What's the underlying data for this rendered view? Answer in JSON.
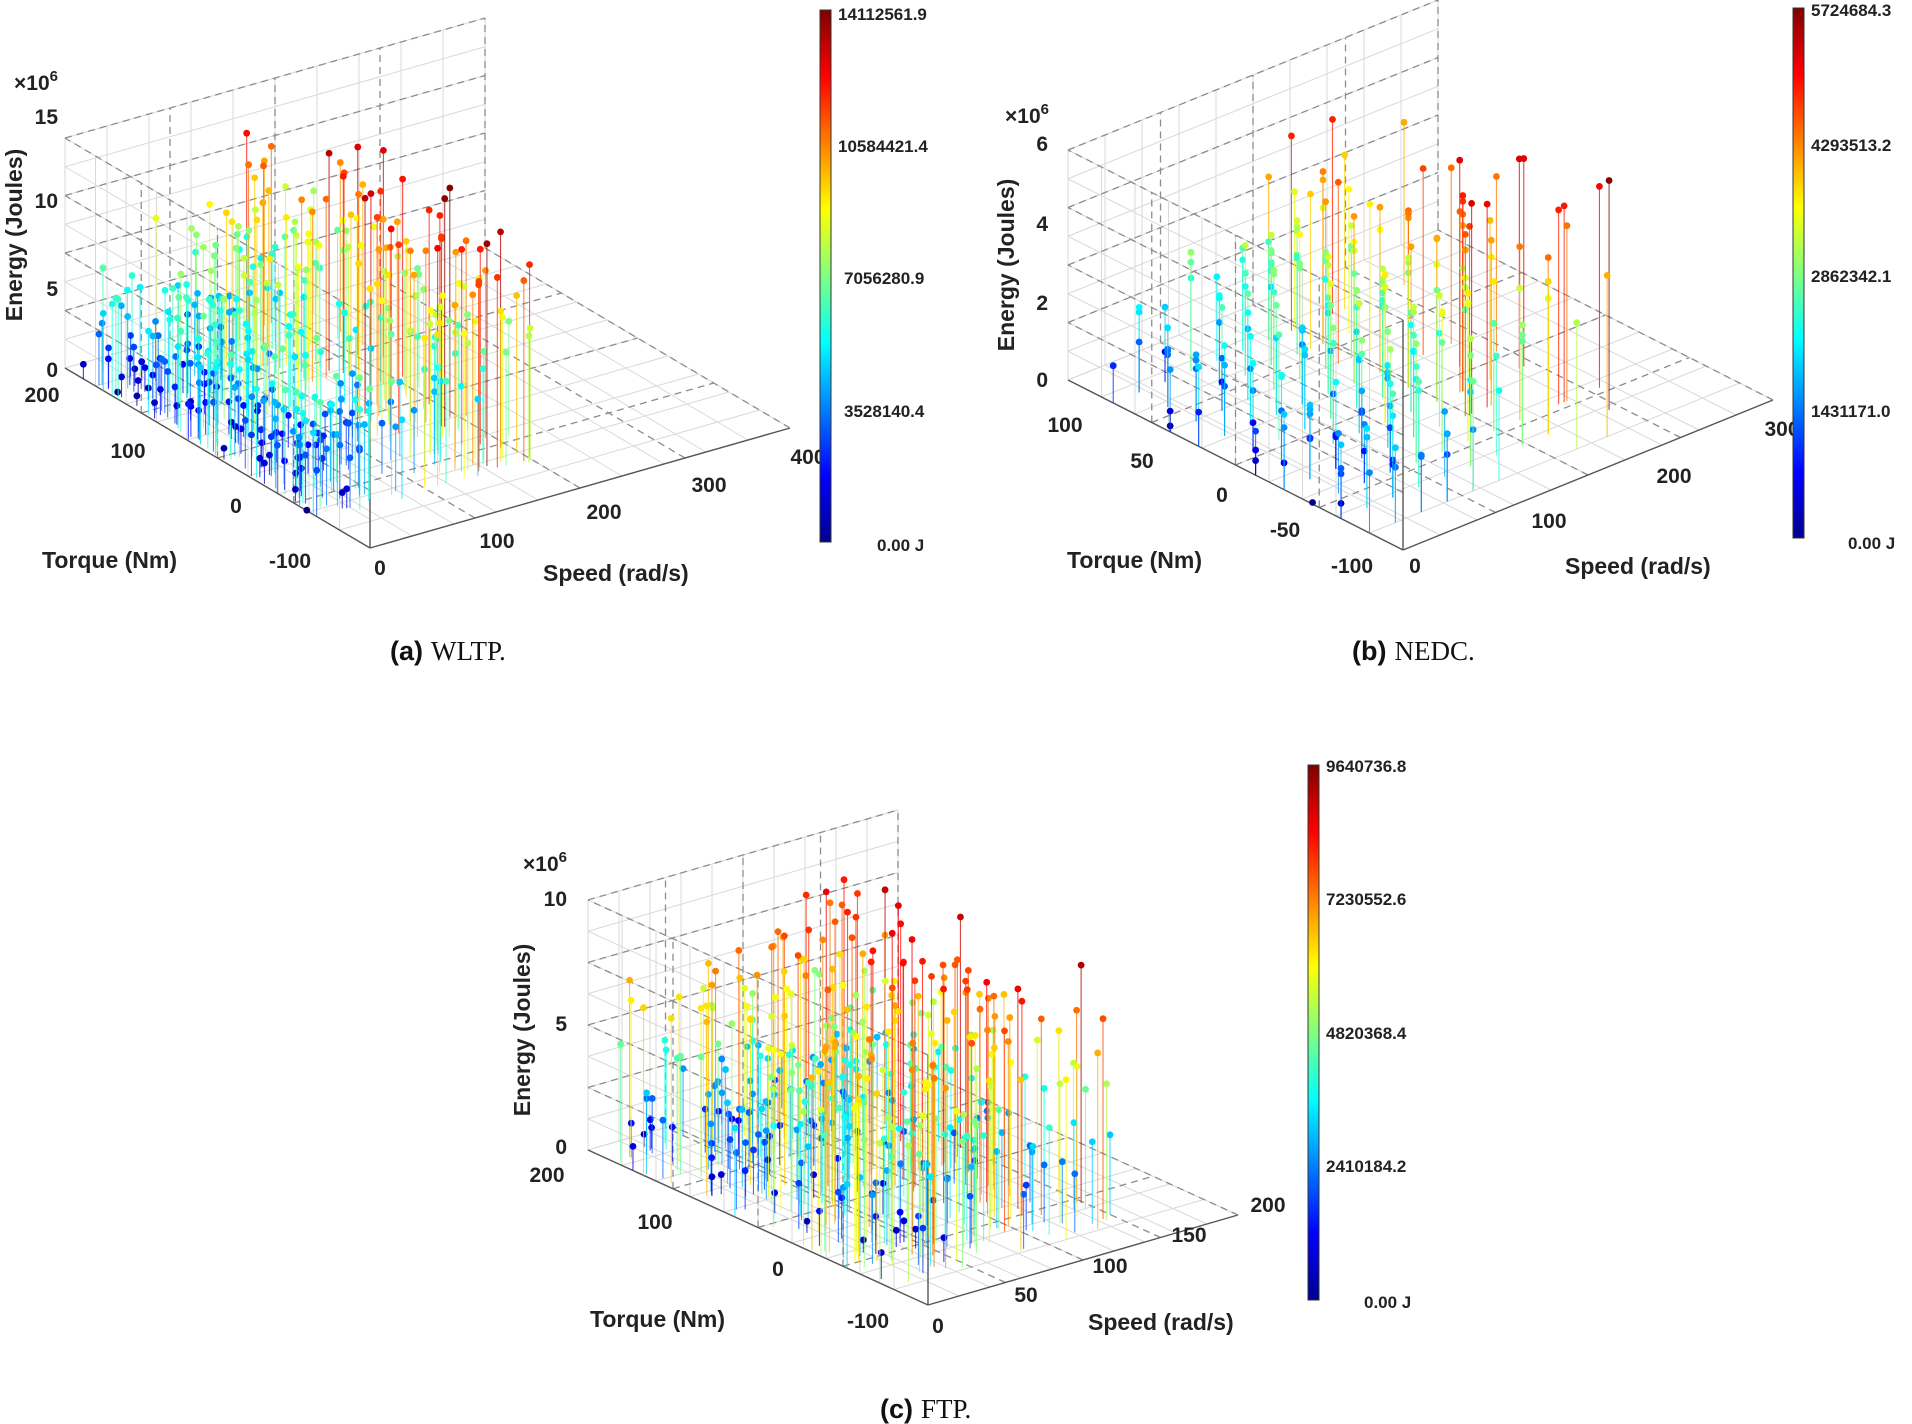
{
  "chart_data": [
    {
      "type": "scatter",
      "subtype": "3d-stem",
      "caption_label": "(a)",
      "caption_text": "WLTP.",
      "zlabel": "Energy (Joules)",
      "xlabel": "Speed (rad/s)",
      "ylabel": "Torque (Nm)",
      "zscale": "×10",
      "zscale_exp": "6",
      "x_ticks": [
        "0",
        "100",
        "200",
        "300",
        "400"
      ],
      "y_ticks": [
        "-100",
        "0",
        "100",
        "200"
      ],
      "z_ticks": [
        "0",
        "5",
        "10",
        "15"
      ],
      "xlim": [
        0,
        400
      ],
      "ylim": [
        -100,
        200
      ],
      "zlim": [
        0,
        15
      ],
      "colorbar_ticks": [
        "14112561.9",
        "10584421.4",
        "7056280.9",
        "3528140.4",
        "0.00 J"
      ],
      "colorbar_max": 14112561.9,
      "seed": 11
    },
    {
      "type": "scatter",
      "subtype": "3d-stem",
      "caption_label": "(b)",
      "caption_text": "NEDC.",
      "zlabel": "Energy (Joules)",
      "xlabel": "Speed (rad/s)",
      "ylabel": "Torque (Nm)",
      "zscale": "×10",
      "zscale_exp": "6",
      "x_ticks": [
        "0",
        "100",
        "200",
        "300"
      ],
      "y_ticks": [
        "-100",
        "-50",
        "0",
        "50",
        "100"
      ],
      "z_ticks": [
        "0",
        "2",
        "4",
        "6"
      ],
      "xlim": [
        0,
        300
      ],
      "ylim": [
        -100,
        100
      ],
      "zlim": [
        0,
        6
      ],
      "colorbar_ticks": [
        "5724684.3",
        "4293513.2",
        "2862342.1",
        "1431171.0",
        "0.00 J"
      ],
      "colorbar_max": 5724684.3,
      "seed": 23
    },
    {
      "type": "scatter",
      "subtype": "3d-stem",
      "caption_label": "(c)",
      "caption_text": "FTP.",
      "zlabel": "Energy (Joules)",
      "xlabel": "Speed (rad/s)",
      "ylabel": "Torque (Nm)",
      "zscale": "×10",
      "zscale_exp": "6",
      "x_ticks": [
        "0",
        "50",
        "100",
        "150",
        "200"
      ],
      "y_ticks": [
        "-100",
        "0",
        "100",
        "200"
      ],
      "z_ticks": [
        "0",
        "5",
        "10"
      ],
      "xlim": [
        0,
        200
      ],
      "ylim": [
        -100,
        200
      ],
      "zlim": [
        0,
        10
      ],
      "colorbar_ticks": [
        "9640736.8",
        "7230552.6",
        "4820368.4",
        "2410184.2",
        "0.00 J"
      ],
      "colorbar_max": 9640736.8,
      "seed": 37
    }
  ]
}
